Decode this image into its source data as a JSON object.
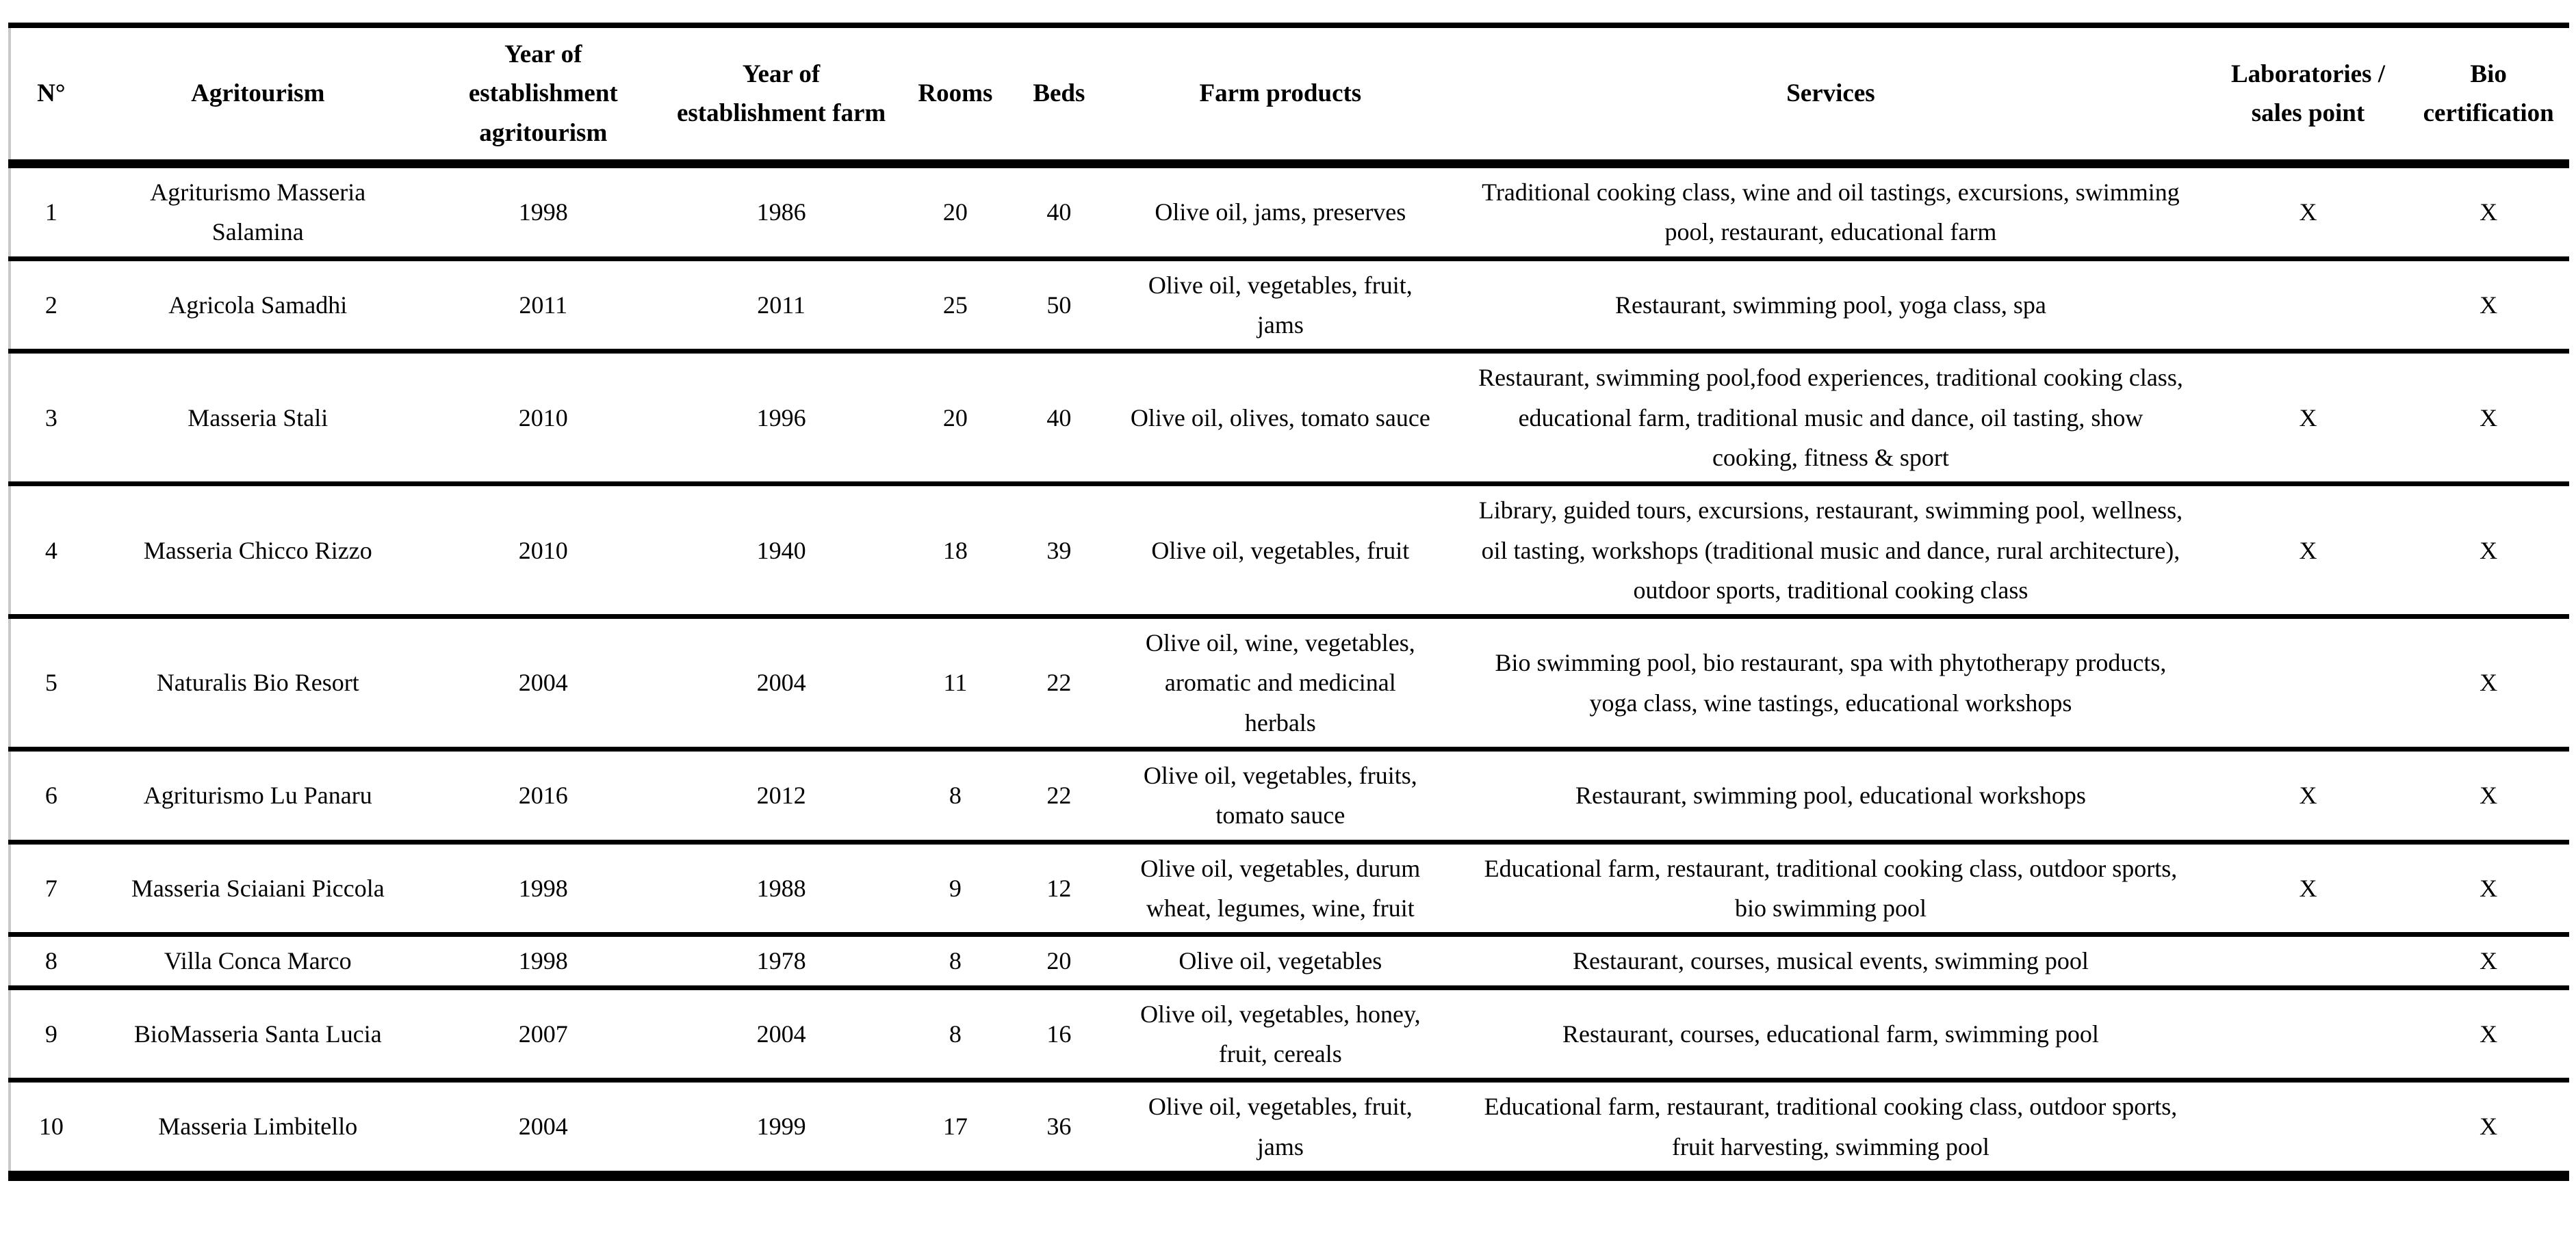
{
  "table": {
    "columns": [
      {
        "key": "no",
        "label": "N°"
      },
      {
        "key": "name",
        "label": "Agritourism"
      },
      {
        "key": "year_agritourism",
        "label": "Year of establishment agritourism"
      },
      {
        "key": "year_farm",
        "label": "Year of establishment farm"
      },
      {
        "key": "rooms",
        "label": "Rooms"
      },
      {
        "key": "beds",
        "label": "Beds"
      },
      {
        "key": "products",
        "label": "Farm products"
      },
      {
        "key": "services",
        "label": "Services"
      },
      {
        "key": "labs",
        "label": "Laboratories / sales point"
      },
      {
        "key": "bio",
        "label": "Bio certification"
      }
    ],
    "rows": [
      {
        "no": "1",
        "name": "Agriturismo Masseria Salamina",
        "year_agritourism": "1998",
        "year_farm": "1986",
        "rooms": "20",
        "beds": "40",
        "products": "Olive oil, jams, preserves",
        "services": "Traditional cooking class, wine and oil tastings, excursions, swimming pool, restaurant, educational farm",
        "labs": "X",
        "bio": "X"
      },
      {
        "no": "2",
        "name": "Agricola Samadhi",
        "year_agritourism": "2011",
        "year_farm": "2011",
        "rooms": "25",
        "beds": "50",
        "products": "Olive oil, vegetables, fruit, jams",
        "services": "Restaurant, swimming pool, yoga class, spa",
        "labs": "",
        "bio": "X"
      },
      {
        "no": "3",
        "name": "Masseria Stali",
        "year_agritourism": "2010",
        "year_farm": "1996",
        "rooms": "20",
        "beds": "40",
        "products": "Olive oil, olives, tomato sauce",
        "services": "Restaurant, swimming pool,food experiences, traditional cooking class, educational farm, traditional music and dance, oil tasting, show cooking, fitness & sport",
        "labs": "X",
        "bio": "X"
      },
      {
        "no": "4",
        "name": "Masseria Chicco Rizzo",
        "year_agritourism": "2010",
        "year_farm": "1940",
        "rooms": "18",
        "beds": "39",
        "products": "Olive oil, vegetables, fruit",
        "services": "Library, guided tours, excursions, restaurant, swimming pool, wellness, oil tasting, workshops (traditional music and dance, rural architecture), outdoor sports, traditional cooking class",
        "labs": "X",
        "bio": "X"
      },
      {
        "no": "5",
        "name": "Naturalis Bio Resort",
        "year_agritourism": "2004",
        "year_farm": "2004",
        "rooms": "11",
        "beds": "22",
        "products": "Olive oil, wine, vegetables, aromatic and medicinal herbals",
        "services": "Bio swimming pool, bio restaurant, spa with phytotherapy products, yoga class, wine tastings, educational workshops",
        "labs": "",
        "bio": "X"
      },
      {
        "no": "6",
        "name": "Agriturismo Lu Panaru",
        "year_agritourism": "2016",
        "year_farm": "2012",
        "rooms": "8",
        "beds": "22",
        "products": "Olive oil, vegetables, fruits, tomato sauce",
        "services": "Restaurant, swimming pool, educational workshops",
        "labs": "X",
        "bio": "X"
      },
      {
        "no": "7",
        "name": "Masseria Sciaiani Piccola",
        "year_agritourism": "1998",
        "year_farm": "1988",
        "rooms": "9",
        "beds": "12",
        "products": "Olive oil, vegetables, durum wheat, legumes, wine, fruit",
        "services": "Educational farm, restaurant, traditional cooking class, outdoor sports, bio swimming pool",
        "labs": "X",
        "bio": "X"
      },
      {
        "no": "8",
        "name": "Villa Conca Marco",
        "year_agritourism": "1998",
        "year_farm": "1978",
        "rooms": "8",
        "beds": "20",
        "products": "Olive oil, vegetables",
        "services": "Restaurant, courses, musical events, swimming pool",
        "labs": "",
        "bio": "X"
      },
      {
        "no": "9",
        "name": "BioMasseria Santa Lucia",
        "year_agritourism": "2007",
        "year_farm": "2004",
        "rooms": "8",
        "beds": "16",
        "products": "Olive oil, vegetables, honey, fruit, cereals",
        "services": "Restaurant, courses, educational farm, swimming pool",
        "labs": "",
        "bio": "X"
      },
      {
        "no": "10",
        "name": "Masseria Limbitello",
        "year_agritourism": "2004",
        "year_farm": "1999",
        "rooms": "17",
        "beds": "36",
        "products": "Olive oil, vegetables, fruit, jams",
        "services": "Educational farm, restaurant, traditional cooking class, outdoor sports, fruit harvesting, swimming pool",
        "labs": "",
        "bio": "X"
      }
    ]
  }
}
